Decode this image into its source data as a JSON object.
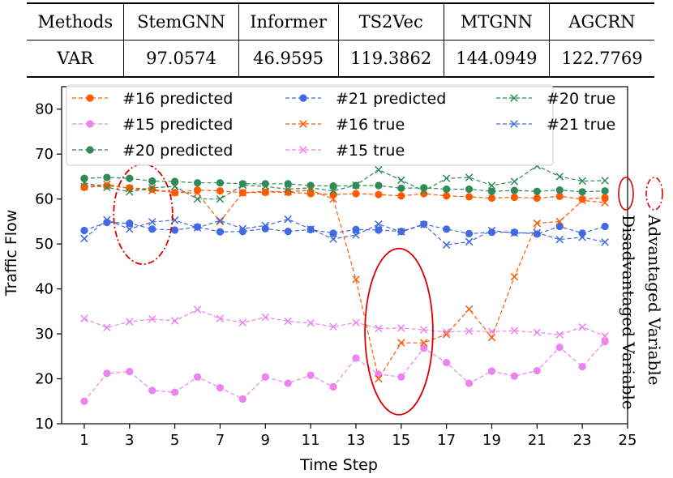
{
  "table": {
    "headers": [
      "Methods",
      "StemGNN",
      "Informer",
      "TS2Vec",
      "MTGNN",
      "AGCRN"
    ],
    "rows": [
      [
        "VAR",
        "97.0574",
        "46.9595",
        "119.3862",
        "144.0949",
        "122.7769"
      ]
    ]
  },
  "annotations": {
    "advantaged_label": "Advantaged Variable",
    "disadvantaged_label": "Disadvantaged Variable"
  },
  "chart_data": {
    "type": "line",
    "xlabel": "Time Step",
    "ylabel": "Traffic Flow",
    "xlim": [
      0,
      25
    ],
    "ylim": [
      10,
      85
    ],
    "xticks": [
      1,
      3,
      5,
      7,
      9,
      11,
      13,
      15,
      17,
      19,
      21,
      23,
      25
    ],
    "yticks": [
      10,
      20,
      30,
      40,
      50,
      60,
      70,
      80
    ],
    "x": [
      1,
      2,
      3,
      4,
      5,
      6,
      7,
      8,
      9,
      10,
      11,
      12,
      13,
      14,
      15,
      16,
      17,
      18,
      19,
      20,
      21,
      22,
      23,
      24
    ],
    "series": [
      {
        "name": "#16 predicted",
        "color": "#ff5a00",
        "marker": "circle",
        "values": [
          62.6,
          62.9,
          62.5,
          62.2,
          61.4,
          62.0,
          61.8,
          61.4,
          61.5,
          61.5,
          61.2,
          61.0,
          61.2,
          61.0,
          60.7,
          61.2,
          60.7,
          60.5,
          60.2,
          60.4,
          60.2,
          60.6,
          60.0,
          60.3
        ]
      },
      {
        "name": "#15 predicted",
        "color": "#ee82ee",
        "marker": "circle",
        "values": [
          15.0,
          21.2,
          21.6,
          17.4,
          17.0,
          20.4,
          18.0,
          15.5,
          20.4,
          19.0,
          20.8,
          18.2,
          24.6,
          21.0,
          20.4,
          26.8,
          23.6,
          19.0,
          21.7,
          20.6,
          21.8,
          27.0,
          22.7,
          28.3
        ]
      },
      {
        "name": "#20 predicted",
        "color": "#2e8b57",
        "marker": "circle",
        "values": [
          64.6,
          64.8,
          64.6,
          64.0,
          63.9,
          63.6,
          63.6,
          63.4,
          63.4,
          63.4,
          63.0,
          62.9,
          63.0,
          63.0,
          62.4,
          62.5,
          62.2,
          62.2,
          61.7,
          61.9,
          61.7,
          62.0,
          61.6,
          61.8
        ]
      },
      {
        "name": "#21 predicted",
        "color": "#4169e1",
        "marker": "circle",
        "values": [
          53.0,
          54.8,
          54.6,
          53.3,
          53.1,
          53.8,
          52.7,
          52.8,
          53.4,
          52.8,
          53.2,
          52.4,
          53.2,
          53.1,
          52.8,
          54.4,
          53.3,
          52.3,
          52.6,
          52.6,
          52.2,
          53.9,
          52.4,
          53.9
        ]
      },
      {
        "name": "#16 true",
        "color": "#ff5a00",
        "marker": "x",
        "values": [
          62.8,
          63.3,
          62.3,
          61.9,
          61.5,
          61.3,
          55.0,
          61.4,
          61.7,
          61.6,
          62.0,
          60.0,
          42.1,
          20.0,
          28.0,
          28.0,
          29.9,
          35.5,
          29.2,
          42.7,
          54.6,
          55.0,
          59.7,
          59.2
        ]
      },
      {
        "name": "#15 true",
        "color": "#ee82ee",
        "marker": "x",
        "values": [
          33.4,
          31.4,
          32.7,
          33.3,
          32.9,
          35.4,
          33.4,
          32.5,
          33.7,
          32.8,
          32.4,
          31.6,
          32.5,
          31.2,
          31.3,
          30.9,
          30.4,
          30.6,
          30.5,
          30.7,
          30.3,
          29.8,
          31.5,
          29.5
        ]
      },
      {
        "name": "#20 true",
        "color": "#2e8b57",
        "marker": "x",
        "values": [
          63.6,
          62.6,
          61.6,
          62.5,
          62.8,
          60.0,
          60.0,
          63.1,
          62.8,
          62.2,
          62.5,
          61.8,
          63.1,
          66.5,
          64.2,
          61.8,
          64.6,
          64.8,
          63.0,
          63.9,
          67.4,
          65.0,
          64.0,
          64.1
        ]
      },
      {
        "name": "#21 true",
        "color": "#4169e1",
        "marker": "x",
        "values": [
          51.2,
          55.4,
          53.3,
          54.9,
          55.3,
          53.6,
          55.2,
          53.4,
          54.1,
          55.5,
          53.3,
          51.1,
          52.0,
          54.4,
          52.7,
          54.3,
          49.8,
          50.5,
          53.0,
          52.4,
          52.5,
          51.0,
          51.5,
          50.4
        ]
      }
    ],
    "legend": {
      "position": "top",
      "columns": [
        [
          "#16 predicted",
          "#15 predicted",
          "#20 predicted"
        ],
        [
          "#21 predicted",
          "#16 true",
          "#15 true"
        ],
        [
          "#20 true",
          "#21 true"
        ]
      ]
    },
    "highlight_regions": [
      {
        "kind": "advantaged",
        "style": "dash-dot",
        "color": "#dc0000",
        "x_range": [
          2.3,
          4.9
        ],
        "y_range": [
          45.5,
          67.8
        ]
      },
      {
        "kind": "disadvantaged",
        "style": "solid",
        "color": "#dc0000",
        "x_range": [
          13.4,
          16.4
        ],
        "y_range": [
          12.0,
          49.0
        ]
      }
    ]
  }
}
